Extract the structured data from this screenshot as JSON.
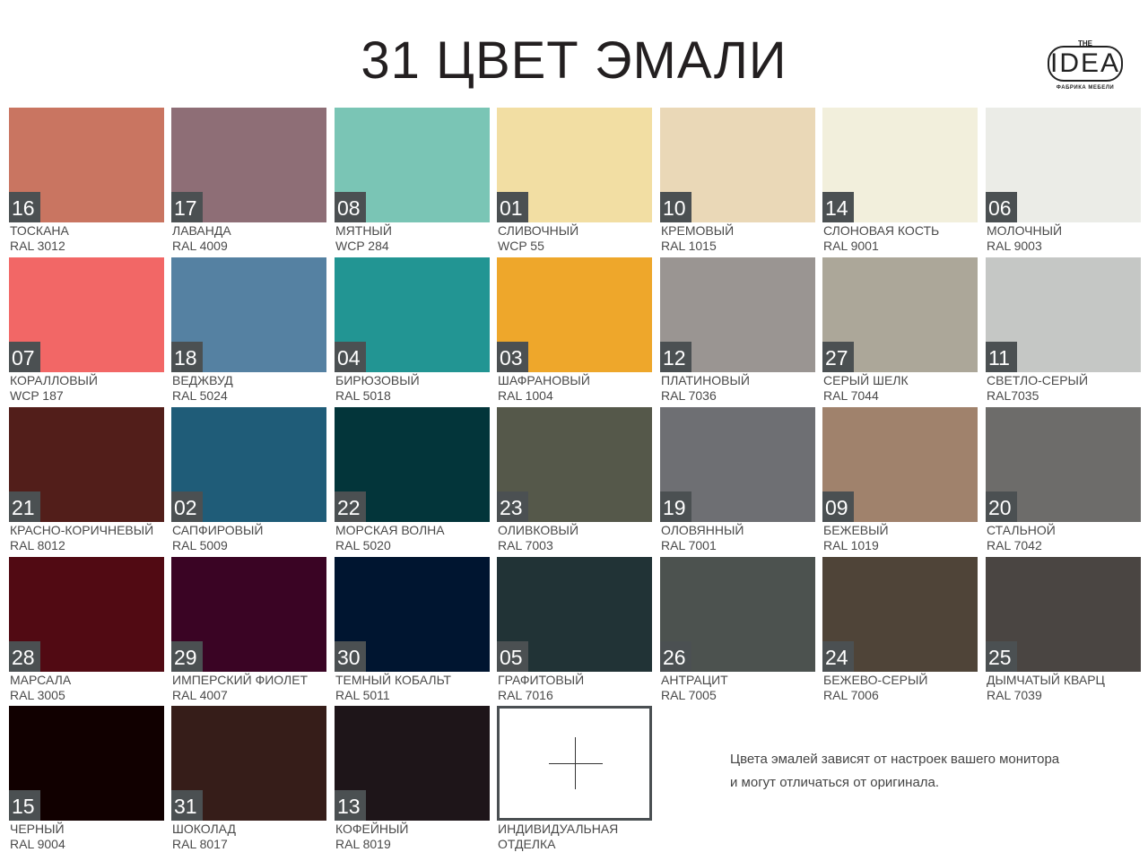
{
  "title": "31 ЦВЕТ ЭМАЛИ",
  "logo": {
    "the": "THE",
    "name": "IDEA",
    "subtitle": "ФАБРИКА МЕБЕЛИ"
  },
  "swatches": [
    {
      "num": "16",
      "name": "ТОСКАНА",
      "code": "RAL 3012",
      "color": "#c97561"
    },
    {
      "num": "17",
      "name": "ЛАВАНДА",
      "code": "RAL 4009",
      "color": "#8e6e76"
    },
    {
      "num": "08",
      "name": "МЯТНЫЙ",
      "code": "WCP 284",
      "color": "#7ac5b5"
    },
    {
      "num": "01",
      "name": "СЛИВОЧНЫЙ",
      "code": "WCP 55",
      "color": "#f2dea3"
    },
    {
      "num": "10",
      "name": "КРЕМОВЫЙ",
      "code": "RAL 1015",
      "color": "#ead8b7"
    },
    {
      "num": "14",
      "name": "СЛОНОВАЯ КОСТЬ",
      "code": "RAL 9001",
      "color": "#f2efdc"
    },
    {
      "num": "06",
      "name": "МОЛОЧНЫЙ",
      "code": "RAL 9003",
      "color": "#ebece7"
    },
    {
      "num": "07",
      "name": "КОРАЛЛОВЫЙ",
      "code": "WCP 187",
      "color": "#f26766"
    },
    {
      "num": "18",
      "name": "ВЕДЖВУД",
      "code": "RAL 5024",
      "color": "#5581a2"
    },
    {
      "num": "04",
      "name": "БИРЮЗОВЫЙ",
      "code": "RAL 5018",
      "color": "#229593"
    },
    {
      "num": "03",
      "name": "ШАФРАНОВЫЙ",
      "code": "RAL 1004",
      "color": "#eea72b"
    },
    {
      "num": "12",
      "name": "ПЛАТИНОВЫЙ",
      "code": "RAL 7036",
      "color": "#9a9592"
    },
    {
      "num": "27",
      "name": "СЕРЫЙ ШЕЛК",
      "code": "RAL 7044",
      "color": "#aca799"
    },
    {
      "num": "11",
      "name": "СВЕТЛО-СЕРЫЙ",
      "code": "RAL7035",
      "color": "#c5c7c5"
    },
    {
      "num": "21",
      "name": "КРАСНО-КОРИЧНЕВЫЙ",
      "code": "RAL 8012",
      "color": "#521e1a"
    },
    {
      "num": "02",
      "name": "САПФИРОВЫЙ",
      "code": "RAL 5009",
      "color": "#1f5c78"
    },
    {
      "num": "22",
      "name": "МОРСКАЯ ВОЛНА",
      "code": "RAL 5020",
      "color": "#03353a"
    },
    {
      "num": "23",
      "name": "ОЛИВКОВЫЙ",
      "code": "RAL 7003",
      "color": "#55584a"
    },
    {
      "num": "19",
      "name": "ОЛОВЯННЫЙ",
      "code": "RAL 7001",
      "color": "#6e6f73"
    },
    {
      "num": "09",
      "name": "БЕЖЕВЫЙ",
      "code": "RAL 1019",
      "color": "#a0826c"
    },
    {
      "num": "20",
      "name": "СТАЛЬНОЙ",
      "code": "RAL 7042",
      "color": "#6d6c6a"
    },
    {
      "num": "28",
      "name": "МАРСАЛА",
      "code": "RAL 3005",
      "color": "#510a13"
    },
    {
      "num": "29",
      "name": "ИМПЕРСКИЙ ФИОЛЕТ",
      "code": "RAL 4007",
      "color": "#3a0424"
    },
    {
      "num": "30",
      "name": "ТЕМНЫЙ КОБАЛЬТ",
      "code": "RAL 5011",
      "color": "#001530"
    },
    {
      "num": "05",
      "name": "ГРАФИТОВЫЙ",
      "code": "RAL 7016",
      "color": "#213336"
    },
    {
      "num": "26",
      "name": "АНТРАЦИТ",
      "code": "RAL 7005",
      "color": "#4c524f"
    },
    {
      "num": "24",
      "name": "БЕЖЕВО-СЕРЫЙ",
      "code": "RAL 7006",
      "color": "#4f4438"
    },
    {
      "num": "25",
      "name": "ДЫМЧАТЫЙ КВАРЦ",
      "code": "RAL 7039",
      "color": "#4a4542"
    },
    {
      "num": "15",
      "name": "ЧЕРНЫЙ",
      "code": "RAL 9004",
      "color": "#110000"
    },
    {
      "num": "31",
      "name": "ШОКОЛАД",
      "code": "RAL 8017",
      "color": "#361d19"
    },
    {
      "num": "13",
      "name": "КОФЕЙНЫЙ",
      "code": "RAL 8019",
      "color": "#1e1519"
    }
  ],
  "custom": {
    "line1": "ИНДИВИДУАЛЬНАЯ",
    "line2": "ОТДЕЛКА",
    "icon": "plus-icon"
  },
  "note": {
    "line1": "Цвета эмалей зависят от настроек  вашего монитора",
    "line2": "и могут отличаться  от оригинала."
  }
}
